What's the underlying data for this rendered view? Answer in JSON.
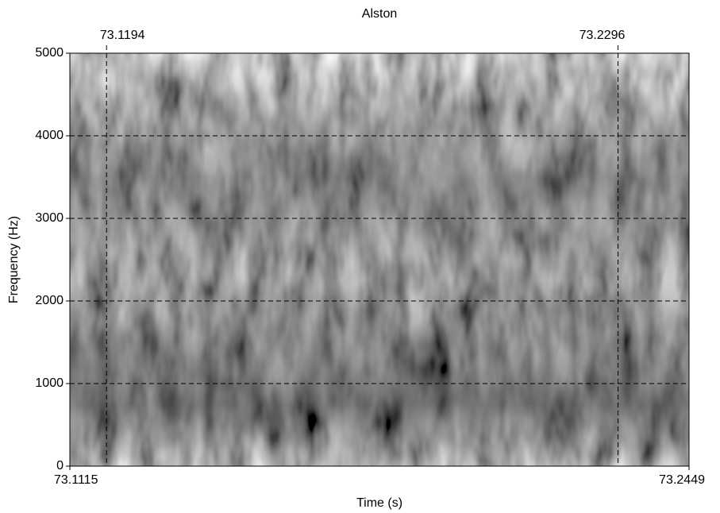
{
  "chart_data": {
    "type": "spectrogram",
    "title": "Alston",
    "x_label": "Time (s)",
    "y_label": "Frequency (Hz)",
    "xlim": [
      73.1115,
      73.2449
    ],
    "xticks": [
      73.1115,
      73.2449
    ],
    "ylim": [
      0,
      5000
    ],
    "yticks": [
      0,
      1000,
      2000,
      3000,
      4000,
      5000
    ],
    "cursors": [
      73.1194,
      73.2296
    ],
    "grid": true
  }
}
